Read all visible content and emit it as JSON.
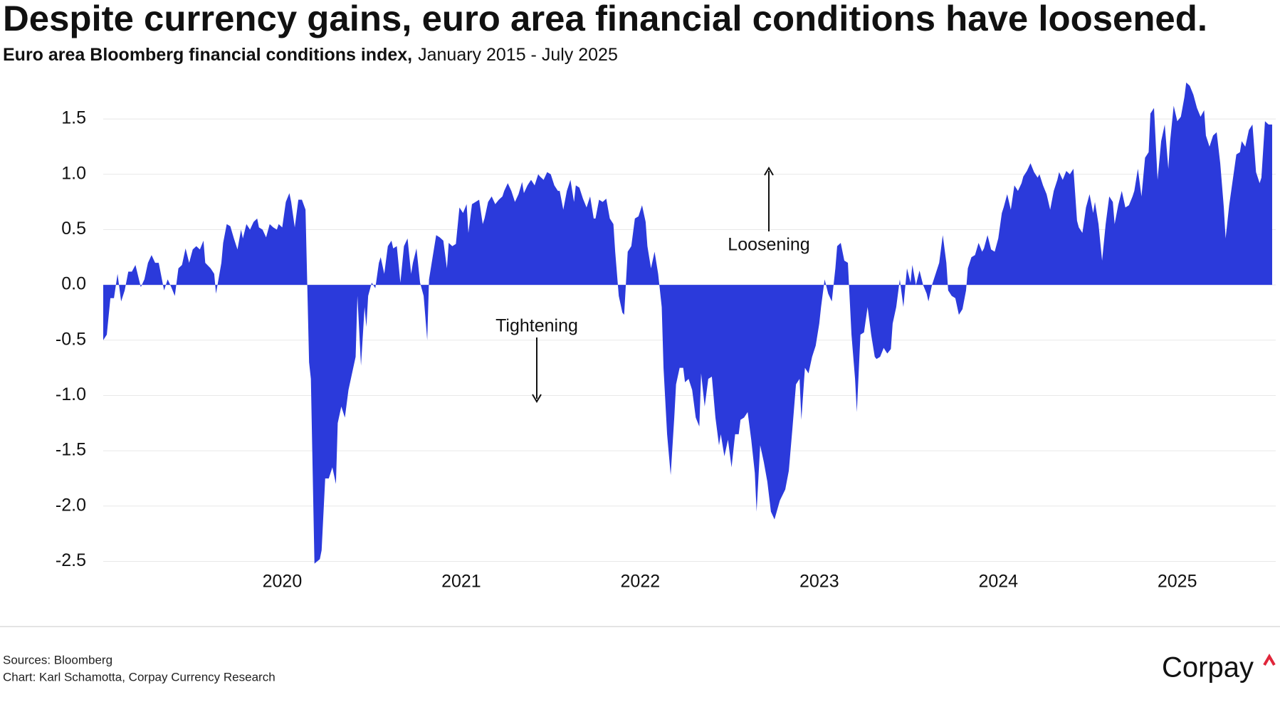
{
  "chart_data": {
    "type": "area",
    "title": "Despite currency gains, euro area financial conditions have loosened.",
    "subtitle_bold": "Euro area Bloomberg financial conditions index,",
    "subtitle": "January 2015 - July 2025",
    "annotations": [
      "Loosening",
      "Tightening"
    ],
    "sources": "Sources: Bloomberg",
    "credit": "Chart: Karl Schamotta, Corpay Currency Research",
    "logo": "Corpay",
    "color": "#2b3adb",
    "grid": true,
    "xlim": [
      2019.0,
      2025.55
    ],
    "xticks": [
      2020,
      2021,
      2022,
      2023,
      2024,
      2025
    ],
    "ylim": [
      -2.6,
      1.9
    ],
    "yticks": [
      1.5,
      {
        "value": 1,
        "label": "1.0"
      },
      0.5,
      {
        "value": 0,
        "label": "0.0"
      },
      -0.5,
      {
        "value": -1,
        "label": "-1.0"
      },
      -1.5,
      {
        "value": -2,
        "label": "-2.0"
      },
      -2.5
    ],
    "x": [
      2019.0,
      2019.02,
      2019.04,
      2019.06,
      2019.08,
      2019.1,
      2019.12,
      2019.14,
      2019.16,
      2019.18,
      2019.21,
      2019.23,
      2019.25,
      2019.27,
      2019.29,
      2019.31,
      2019.34,
      2019.36,
      2019.38,
      2019.4,
      2019.42,
      2019.44,
      2019.46,
      2019.48,
      2019.5,
      2019.52,
      2019.54,
      2019.56,
      2019.57,
      2019.6,
      2019.62,
      2019.63,
      2019.66,
      2019.67,
      2019.69,
      2019.71,
      2019.73,
      2019.75,
      2019.77,
      2019.78,
      2019.8,
      2019.82,
      2019.84,
      2019.86,
      2019.87,
      2019.89,
      2019.91,
      2019.93,
      2019.95,
      2019.97,
      2019.98,
      2020.0,
      2020.02,
      2020.04,
      2020.05,
      2020.07,
      2020.09,
      2020.11,
      2020.13,
      2020.15,
      2020.16,
      2020.18,
      2020.21,
      2020.22,
      2020.24,
      2020.26,
      2020.28,
      2020.3,
      2020.31,
      2020.33,
      2020.35,
      2020.37,
      2020.39,
      2020.41,
      2020.42,
      2020.44,
      2020.46,
      2020.47,
      2020.48,
      2020.5,
      2020.52,
      2020.54,
      2020.55,
      2020.57,
      2020.59,
      2020.61,
      2020.62,
      2020.64,
      2020.66,
      2020.68,
      2020.7,
      2020.72,
      2020.73,
      2020.75,
      2020.77,
      2020.79,
      2020.81,
      2020.82,
      2020.84,
      2020.86,
      2020.88,
      2020.9,
      2020.92,
      2020.93,
      2020.95,
      2020.97,
      2020.99,
      2021.01,
      2021.03,
      2021.04,
      2021.06,
      2021.08,
      2021.1,
      2021.12,
      2021.13,
      2021.15,
      2021.17,
      2021.19,
      2021.21,
      2021.23,
      2021.24,
      2021.26,
      2021.28,
      2021.3,
      2021.32,
      2021.34,
      2021.35,
      2021.37,
      2021.39,
      2021.41,
      2021.43,
      2021.44,
      2021.46,
      2021.48,
      2021.5,
      2021.52,
      2021.54,
      2021.55,
      2021.57,
      2021.59,
      2021.61,
      2021.63,
      2021.64,
      2021.66,
      2021.68,
      2021.7,
      2021.72,
      2021.74,
      2021.75,
      2021.77,
      2021.79,
      2021.81,
      2021.83,
      2021.85,
      2021.86,
      2021.88,
      2021.9,
      2021.91,
      2021.93,
      2021.95,
      2021.97,
      2021.99,
      2022.01,
      2022.03,
      2022.04,
      2022.06,
      2022.08,
      2022.1,
      2022.12,
      2022.13,
      2022.15,
      2022.17,
      2022.19,
      2022.2,
      2022.22,
      2022.24,
      2022.25,
      2022.27,
      2022.29,
      2022.31,
      2022.33,
      2022.34,
      2022.36,
      2022.38,
      2022.4,
      2022.42,
      2022.44,
      2022.45,
      2022.47,
      2022.49,
      2022.51,
      2022.53,
      2022.55,
      2022.56,
      2022.58,
      2022.6,
      2022.62,
      2022.64,
      2022.65,
      2022.67,
      2022.69,
      2022.71,
      2022.73,
      2022.75,
      2022.78,
      2022.81,
      2022.83,
      2022.85,
      2022.87,
      2022.89,
      2022.9,
      2022.92,
      2022.94,
      2022.96,
      2022.98,
      2023.0,
      2023.01,
      2023.03,
      2023.05,
      2023.07,
      2023.09,
      2023.1,
      2023.12,
      2023.14,
      2023.16,
      2023.18,
      2023.2,
      2023.21,
      2023.23,
      2023.25,
      2023.27,
      2023.29,
      2023.31,
      2023.32,
      2023.34,
      2023.36,
      2023.38,
      2023.4,
      2023.41,
      2023.43,
      2023.45,
      2023.47,
      2023.49,
      2023.51,
      2023.52,
      2023.54,
      2023.56,
      2023.58,
      2023.6,
      2023.61,
      2023.63,
      2023.65,
      2023.67,
      2023.69,
      2023.71,
      2023.72,
      2023.74,
      2023.76,
      2023.78,
      2023.8,
      2023.82,
      2023.83,
      2023.85,
      2023.87,
      2023.89,
      2023.91,
      2023.92,
      2023.94,
      2023.96,
      2023.98,
      2024.0,
      2024.02,
      2024.03,
      2024.05,
      2024.07,
      2024.09,
      2024.11,
      2024.13,
      2024.14,
      2024.16,
      2024.18,
      2024.2,
      2024.22,
      2024.23,
      2024.25,
      2024.27,
      2024.29,
      2024.31,
      2024.33,
      2024.34,
      2024.36,
      2024.38,
      2024.4,
      2024.42,
      2024.44,
      2024.45,
      2024.47,
      2024.49,
      2024.51,
      2024.53,
      2024.54,
      2024.56,
      2024.58,
      2024.6,
      2024.62,
      2024.64,
      2024.65,
      2024.67,
      2024.69,
      2024.71,
      2024.73,
      2024.75,
      2024.76,
      2024.78,
      2024.8,
      2024.82,
      2024.84,
      2024.85,
      2024.87,
      2024.89,
      2024.91,
      2024.93,
      2024.95,
      2024.96,
      2024.98,
      2025.0,
      2025.02,
      2025.04,
      2025.05,
      2025.07,
      2025.09,
      2025.11,
      2025.13,
      2025.15,
      2025.16,
      2025.18,
      2025.2,
      2025.22,
      2025.24,
      2025.26,
      2025.27,
      2025.29,
      2025.31,
      2025.33,
      2025.35,
      2025.36,
      2025.38,
      2025.4,
      2025.42,
      2025.44,
      2025.46,
      2025.47,
      2025.49,
      2025.51,
      2025.53
    ],
    "values": [
      -0.5,
      -0.45,
      -0.12,
      -0.12,
      0.1,
      -0.15,
      -0.05,
      0.12,
      0.12,
      0.18,
      -0.02,
      0.05,
      0.2,
      0.27,
      0.2,
      0.2,
      -0.05,
      0.05,
      -0.02,
      -0.1,
      0.15,
      0.18,
      0.33,
      0.2,
      0.32,
      0.35,
      0.32,
      0.4,
      0.2,
      0.15,
      0.1,
      -0.08,
      0.2,
      0.38,
      0.55,
      0.53,
      0.42,
      0.32,
      0.5,
      0.42,
      0.55,
      0.5,
      0.57,
      0.6,
      0.52,
      0.5,
      0.43,
      0.55,
      0.52,
      0.5,
      0.55,
      0.52,
      0.75,
      0.83,
      0.75,
      0.52,
      0.77,
      0.77,
      0.68,
      -0.7,
      -0.85,
      -2.52,
      -2.48,
      -2.4,
      -1.75,
      -1.75,
      -1.65,
      -1.8,
      -1.25,
      -1.1,
      -1.2,
      -0.95,
      -0.8,
      -0.65,
      -0.1,
      -0.73,
      -0.2,
      -0.38,
      -0.1,
      0.02,
      -0.03,
      0.2,
      0.25,
      0.1,
      0.35,
      0.4,
      0.33,
      0.35,
      0.02,
      0.35,
      0.42,
      0.1,
      0.2,
      0.33,
      0.02,
      -0.1,
      -0.5,
      0.05,
      0.25,
      0.45,
      0.43,
      0.4,
      0.15,
      0.38,
      0.35,
      0.37,
      0.7,
      0.65,
      0.73,
      0.47,
      0.73,
      0.75,
      0.77,
      0.55,
      0.6,
      0.75,
      0.8,
      0.73,
      0.77,
      0.8,
      0.85,
      0.92,
      0.85,
      0.75,
      0.82,
      0.93,
      0.83,
      0.9,
      0.95,
      0.9,
      1.0,
      0.98,
      0.95,
      1.02,
      1.0,
      0.9,
      0.85,
      0.85,
      0.68,
      0.85,
      0.95,
      0.75,
      0.9,
      0.88,
      0.78,
      0.7,
      0.8,
      0.6,
      0.6,
      0.77,
      0.75,
      0.78,
      0.6,
      0.55,
      0.3,
      -0.1,
      -0.25,
      -0.27,
      0.3,
      0.35,
      0.6,
      0.62,
      0.72,
      0.57,
      0.35,
      0.15,
      0.3,
      0.1,
      -0.2,
      -0.75,
      -1.35,
      -1.72,
      -1.2,
      -0.9,
      -0.75,
      -0.75,
      -0.88,
      -0.85,
      -0.95,
      -1.2,
      -1.28,
      -0.8,
      -1.1,
      -0.85,
      -0.83,
      -1.2,
      -1.45,
      -1.35,
      -1.55,
      -1.4,
      -1.65,
      -1.35,
      -1.35,
      -1.22,
      -1.2,
      -1.15,
      -1.4,
      -1.7,
      -2.05,
      -1.45,
      -1.6,
      -1.78,
      -2.05,
      -2.12,
      -1.95,
      -1.85,
      -1.68,
      -1.3,
      -0.9,
      -0.85,
      -1.22,
      -0.75,
      -0.8,
      -0.65,
      -0.55,
      -0.35,
      -0.2,
      0.05,
      -0.08,
      -0.15,
      0.15,
      0.35,
      0.38,
      0.22,
      0.2,
      -0.45,
      -0.85,
      -1.15,
      -0.45,
      -0.43,
      -0.2,
      -0.45,
      -0.65,
      -0.67,
      -0.65,
      -0.57,
      -0.62,
      -0.58,
      -0.35,
      -0.2,
      0.05,
      -0.2,
      0.15,
      0.02,
      0.18,
      0,
      0.13,
      0,
      -0.08,
      -0.15,
      0,
      0.1,
      0.2,
      0.45,
      0.2,
      -0.05,
      -0.1,
      -0.12,
      -0.27,
      -0.22,
      -0.05,
      0.15,
      0.25,
      0.27,
      0.38,
      0.3,
      0.33,
      0.45,
      0.32,
      0.3,
      0.42,
      0.65,
      0.7,
      0.82,
      0.68,
      0.9,
      0.85,
      0.92,
      0.98,
      1.03,
      1.1,
      1.02,
      0.97,
      1.0,
      0.9,
      0.82,
      0.68,
      0.85,
      0.95,
      1.02,
      0.95,
      1.03,
      1.0,
      1.05,
      0.58,
      0.52,
      0.47,
      0.7,
      0.82,
      0.65,
      0.75,
      0.55,
      0.22,
      0.55,
      0.8,
      0.75,
      0.55,
      0.72,
      0.85,
      0.7,
      0.72,
      0.8,
      0.85,
      1.05,
      0.8,
      1.15,
      1.2,
      1.55,
      1.6,
      0.95,
      1.3,
      1.45,
      1.05,
      1.3,
      1.62,
      1.48,
      1.52,
      1.7,
      1.83,
      1.8,
      1.72,
      1.6,
      1.52,
      1.58,
      1.35,
      1.25,
      1.35,
      1.38,
      1.1,
      0.7,
      0.42,
      0.72,
      0.95,
      1.18,
      1.2,
      1.3,
      1.25,
      1.4,
      1.45,
      1.02,
      0.92,
      0.97,
      1.48,
      1.45,
      1.45
    ]
  }
}
